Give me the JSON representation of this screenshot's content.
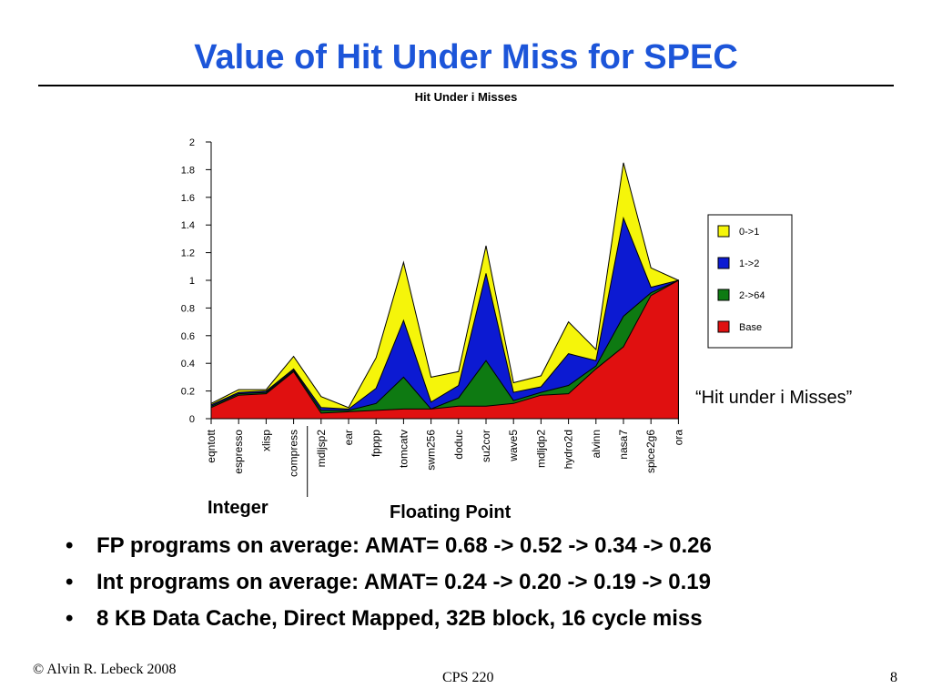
{
  "slide": {
    "title": "Value of Hit Under Miss for SPEC",
    "annotation": "“Hit under i Misses”",
    "group_labels": [
      "Integer",
      "Floating Point"
    ],
    "bullets": [
      "FP programs on average: AMAT= 0.68 -> 0.52 -> 0.34 -> 0.26",
      "Int programs on average: AMAT= 0.24 -> 0.20 -> 0.19 -> 0.19",
      "8 KB Data Cache, Direct Mapped, 32B block, 16 cycle miss"
    ],
    "bullet_glyph": "•",
    "footer_left": "© Alvin R. Lebeck 2008",
    "footer_center": "CPS 220",
    "footer_right": "8"
  },
  "chart_data": {
    "type": "area",
    "title": "Hit Under i Misses",
    "xlabel": "",
    "ylabel": "",
    "ylim": [
      0,
      2
    ],
    "yticks": [
      "0",
      "0.2",
      "0.4",
      "0.6",
      "0.8",
      "1",
      "1.2",
      "1.4",
      "1.6",
      "1.8",
      "2"
    ],
    "categories": [
      "eqntott",
      "espresso",
      "xlisp",
      "compress",
      "mdljsp2",
      "ear",
      "fpppp",
      "tomcatv",
      "swm256",
      "doduc",
      "su2cor",
      "wave5",
      "mdljdp2",
      "hydro2d",
      "alvinn",
      "nasa7",
      "spice2g6",
      "ora"
    ],
    "stacked": true,
    "legend_position": "right",
    "grid": false,
    "series": [
      {
        "name": "Base",
        "color": "#e01010",
        "values": [
          0.08,
          0.17,
          0.18,
          0.34,
          0.04,
          0.05,
          0.06,
          0.07,
          0.07,
          0.09,
          0.09,
          0.11,
          0.17,
          0.18,
          0.36,
          0.52,
          0.89,
          1.0
        ]
      },
      {
        "name": "2->64",
        "color": "#0e7a12",
        "values": [
          0.09,
          0.18,
          0.19,
          0.35,
          0.06,
          0.06,
          0.11,
          0.3,
          0.07,
          0.15,
          0.42,
          0.13,
          0.19,
          0.24,
          0.38,
          0.74,
          0.91,
          1.0
        ]
      },
      {
        "name": "1->2",
        "color": "#0c1ad2",
        "values": [
          0.1,
          0.19,
          0.2,
          0.36,
          0.08,
          0.07,
          0.22,
          0.71,
          0.12,
          0.24,
          1.05,
          0.19,
          0.23,
          0.47,
          0.42,
          1.45,
          0.95,
          1.0
        ]
      },
      {
        "name": "0->1",
        "color": "#f5f50a",
        "values": [
          0.11,
          0.21,
          0.21,
          0.45,
          0.16,
          0.08,
          0.44,
          1.13,
          0.3,
          0.34,
          1.25,
          0.26,
          0.31,
          0.7,
          0.5,
          1.85,
          1.09,
          1.0
        ]
      }
    ]
  }
}
